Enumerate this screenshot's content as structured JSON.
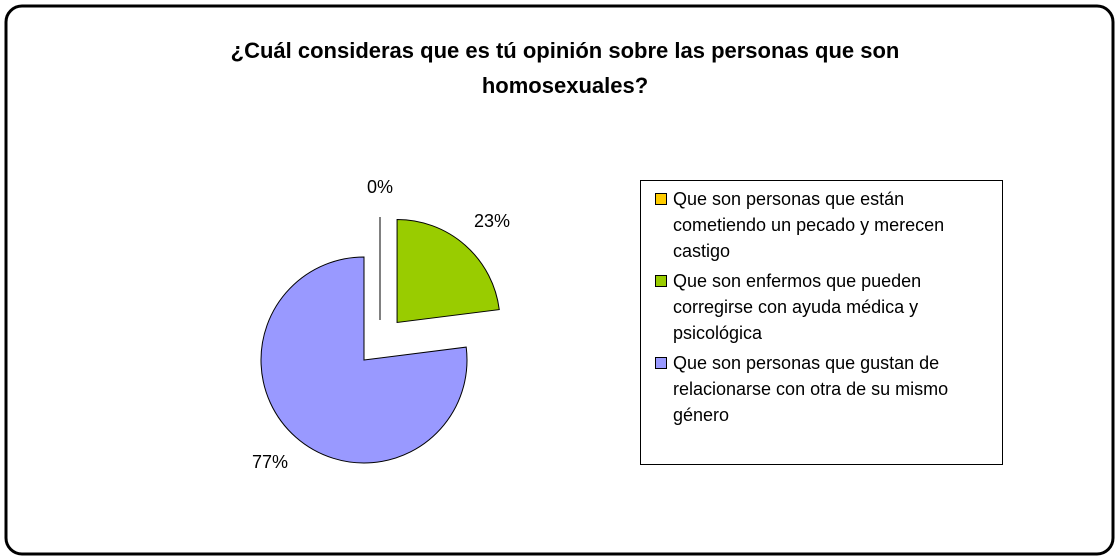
{
  "chart_data": {
    "type": "pie",
    "title": "¿Cuál consideras que es tú opinión sobre las personas que son homosexuales?",
    "categories": [
      "Que son personas que están cometiendo un pecado y merecen castigo",
      "Que son enfermos que pueden corregirse con ayuda médica y psicológica",
      "Que son personas que gustan de relacionarse con otra de su mismo género"
    ],
    "values": [
      0,
      23,
      77
    ],
    "value_labels": [
      "0%",
      "23%",
      "77%"
    ],
    "colors": [
      "#ffcc00",
      "#99cc00",
      "#9999ff"
    ],
    "legend": "right"
  }
}
